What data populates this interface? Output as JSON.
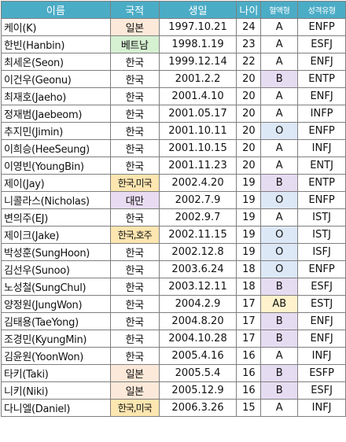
{
  "headers": [
    "이름",
    "국적",
    "생일",
    "나이",
    "혈액형",
    "성격유형"
  ],
  "colors": {
    "header": "#4bacc6",
    "japan": "#fde9d9",
    "vietnam": "#d6f0d2",
    "multi": "#fde6b0",
    "taiwan": "#e9dcf2",
    "blood_B": "#e6dcf2",
    "blood_O": "#dde8f7",
    "blood_AB": "#fff2cc"
  },
  "rows": [
    {
      "name": "케이(K)",
      "nat": "일본",
      "birth": "1997.10.21",
      "age": "24",
      "blood": "A",
      "mbti": "ENFP"
    },
    {
      "name": "한빈(Hanbin)",
      "nat": "베트남",
      "birth": "1998.1.19",
      "age": "23",
      "blood": "A",
      "mbti": "ESFJ"
    },
    {
      "name": "최세온(Seon)",
      "nat": "한국",
      "birth": "1999.12.14",
      "age": "22",
      "blood": "A",
      "mbti": "ENFJ"
    },
    {
      "name": "이건우(Geonu)",
      "nat": "한국",
      "birth": "2001.2.2",
      "age": "20",
      "blood": "B",
      "mbti": "ENTP"
    },
    {
      "name": "최재호(Jaeho)",
      "nat": "한국",
      "birth": "2001.4.10",
      "age": "20",
      "blood": "A",
      "mbti": "ENFJ"
    },
    {
      "name": "정재범(Jaebeom)",
      "nat": "한국",
      "birth": "2001.05.17",
      "age": "20",
      "blood": "A",
      "mbti": "INFP"
    },
    {
      "name": "추지민(Jimin)",
      "nat": "한국",
      "birth": "2001.10.11",
      "age": "20",
      "blood": "O",
      "mbti": "ENFP"
    },
    {
      "name": "이희승(HeeSeung)",
      "nat": "한국",
      "birth": "2001.10.15",
      "age": "20",
      "blood": "A",
      "mbti": "INFJ"
    },
    {
      "name": "이영빈(YoungBin)",
      "nat": "한국",
      "birth": "2001.11.23",
      "age": "20",
      "blood": "A",
      "mbti": "ENTJ"
    },
    {
      "name": "제이(Jay)",
      "nat": "한국,미국",
      "birth": "2002.4.20",
      "age": "19",
      "blood": "B",
      "mbti": "ENTP"
    },
    {
      "name": "니콜라스(Nicholas)",
      "nat": "대만",
      "birth": "2002.7.9",
      "age": "19",
      "blood": "O",
      "mbti": "ENFP"
    },
    {
      "name": "변의주(EJ)",
      "nat": "한국",
      "birth": "2002.9.7",
      "age": "19",
      "blood": "A",
      "mbti": "ISTJ"
    },
    {
      "name": "제이크(Jake)",
      "nat": "한국,호주",
      "birth": "2002.11.15",
      "age": "19",
      "blood": "O",
      "mbti": "ISTJ"
    },
    {
      "name": "박성훈(SungHoon)",
      "nat": "한국",
      "birth": "2002.12.8",
      "age": "19",
      "blood": "O",
      "mbti": "ISFJ"
    },
    {
      "name": "김선우(Sunoo)",
      "nat": "한국",
      "birth": "2003.6.24",
      "age": "18",
      "blood": "O",
      "mbti": "ENFP"
    },
    {
      "name": "노성철(SungChul)",
      "nat": "한국",
      "birth": "2003.12.11",
      "age": "18",
      "blood": "B",
      "mbti": "ESFJ"
    },
    {
      "name": "양정원(JungWon)",
      "nat": "한국",
      "birth": "2004.2.9",
      "age": "17",
      "blood": "AB",
      "mbti": "ESTJ"
    },
    {
      "name": "김태용(TaeYong)",
      "nat": "한국",
      "birth": "2004.8.20",
      "age": "17",
      "blood": "B",
      "mbti": "ENFJ"
    },
    {
      "name": "조경민(KyungMin)",
      "nat": "한국",
      "birth": "2004.10.28",
      "age": "17",
      "blood": "B",
      "mbti": "ENFJ"
    },
    {
      "name": "김윤원(YoonWon)",
      "nat": "한국",
      "birth": "2005.4.16",
      "age": "16",
      "blood": "A",
      "mbti": "INFJ"
    },
    {
      "name": "타키(Taki)",
      "nat": "일본",
      "birth": "2005.5.4",
      "age": "16",
      "blood": "B",
      "mbti": "ESFP"
    },
    {
      "name": "니키(Niki)",
      "nat": "일본",
      "birth": "2005.12.9",
      "age": "16",
      "blood": "B",
      "mbti": "ESFJ"
    },
    {
      "name": "다니엘(Daniel)",
      "nat": "한국,미국",
      "birth": "2006.3.26",
      "age": "15",
      "blood": "A",
      "mbti": "INFJ"
    }
  ]
}
